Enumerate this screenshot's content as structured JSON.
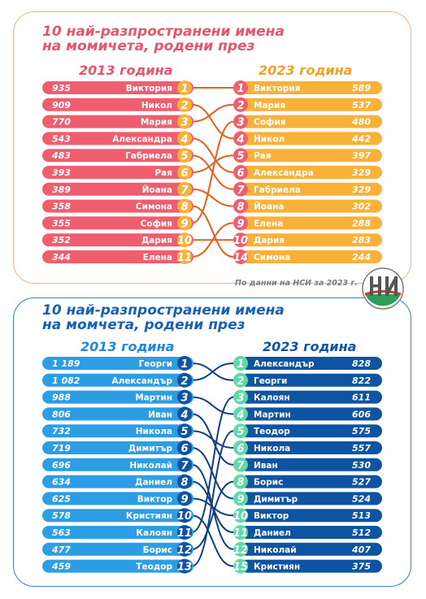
{
  "source_note": "По данни на НСИ за 2023 г.",
  "colors": {
    "girls_accent": "#e8546b",
    "girls_bar_2013": "#ee5e6e",
    "girls_bar_2023": "#f8b23a",
    "girls_link": "#e35f1a",
    "boys_accent": "#1660b6",
    "boys_bar_2013": "#2e9ee4",
    "boys_bar_2023": "#0e54a3",
    "boys_link": "#0e3f86",
    "boys_circle_2023": "#5ed9a8"
  },
  "chart_data": [
    {
      "type": "table",
      "id": "girls",
      "title_lines": [
        "10 най-разпространени имена",
        "на момичета, родени през"
      ],
      "year_left": "2013 година",
      "year_right": "2023 година",
      "left": [
        {
          "rank": 1,
          "name": "Виктория",
          "count": "935"
        },
        {
          "rank": 2,
          "name": "Никол",
          "count": "909"
        },
        {
          "rank": 3,
          "name": "Мария",
          "count": "770"
        },
        {
          "rank": 4,
          "name": "Александра",
          "count": "543"
        },
        {
          "rank": 5,
          "name": "Габриела",
          "count": "483"
        },
        {
          "rank": 6,
          "name": "Рая",
          "count": "393"
        },
        {
          "rank": 7,
          "name": "Йоана",
          "count": "389"
        },
        {
          "rank": 8,
          "name": "Симона",
          "count": "358"
        },
        {
          "rank": 9,
          "name": "София",
          "count": "355"
        },
        {
          "rank": 10,
          "name": "Дария",
          "count": "352"
        },
        {
          "rank": 11,
          "name": "Елена",
          "count": "344"
        }
      ],
      "right": [
        {
          "rank": 1,
          "name": "Виктория",
          "count": "589"
        },
        {
          "rank": 2,
          "name": "Мария",
          "count": "537"
        },
        {
          "rank": 3,
          "name": "София",
          "count": "480"
        },
        {
          "rank": 4,
          "name": "Никол",
          "count": "442"
        },
        {
          "rank": 5,
          "name": "Рая",
          "count": "397"
        },
        {
          "rank": 6,
          "name": "Александра",
          "count": "329"
        },
        {
          "rank": 7,
          "name": "Габриела",
          "count": "329"
        },
        {
          "rank": 8,
          "name": "Йоана",
          "count": "302"
        },
        {
          "rank": 9,
          "name": "Елена",
          "count": "288"
        },
        {
          "rank": 10,
          "name": "Дария",
          "count": "283"
        },
        {
          "rank": 14,
          "name": "Симона",
          "count": "244"
        }
      ]
    },
    {
      "type": "table",
      "id": "boys",
      "title_lines": [
        "10 най-разпространени имена",
        "на момчета, родени през"
      ],
      "year_left": "2013 година",
      "year_right": "2023 година",
      "left": [
        {
          "rank": 1,
          "name": "Георги",
          "count": "1 189"
        },
        {
          "rank": 2,
          "name": "Александър",
          "count": "1 082"
        },
        {
          "rank": 3,
          "name": "Мартин",
          "count": "988"
        },
        {
          "rank": 4,
          "name": "Иван",
          "count": "806"
        },
        {
          "rank": 5,
          "name": "Никола",
          "count": "732"
        },
        {
          "rank": 6,
          "name": "Димитър",
          "count": "719"
        },
        {
          "rank": 7,
          "name": "Николай",
          "count": "696"
        },
        {
          "rank": 8,
          "name": "Даниел",
          "count": "634"
        },
        {
          "rank": 9,
          "name": "Виктор",
          "count": "625"
        },
        {
          "rank": 10,
          "name": "Кристиян",
          "count": "578"
        },
        {
          "rank": 11,
          "name": "Калоян",
          "count": "563"
        },
        {
          "rank": 12,
          "name": "Борис",
          "count": "477"
        },
        {
          "rank": 13,
          "name": "Теодор",
          "count": "459"
        }
      ],
      "right": [
        {
          "rank": 1,
          "name": "Александър",
          "count": "828"
        },
        {
          "rank": 2,
          "name": "Георги",
          "count": "822"
        },
        {
          "rank": 3,
          "name": "Калоян",
          "count": "611"
        },
        {
          "rank": 4,
          "name": "Мартин",
          "count": "606"
        },
        {
          "rank": 5,
          "name": "Теодор",
          "count": "575"
        },
        {
          "rank": 6,
          "name": "Никола",
          "count": "557"
        },
        {
          "rank": 7,
          "name": "Иван",
          "count": "530"
        },
        {
          "rank": 8,
          "name": "Борис",
          "count": "527"
        },
        {
          "rank": 9,
          "name": "Димитър",
          "count": "524"
        },
        {
          "rank": 10,
          "name": "Виктор",
          "count": "513"
        },
        {
          "rank": 11,
          "name": "Даниел",
          "count": "512"
        },
        {
          "rank": 12,
          "name": "Николай",
          "count": "407"
        },
        {
          "rank": 15,
          "name": "Кристиян",
          "count": "375"
        }
      ]
    }
  ]
}
